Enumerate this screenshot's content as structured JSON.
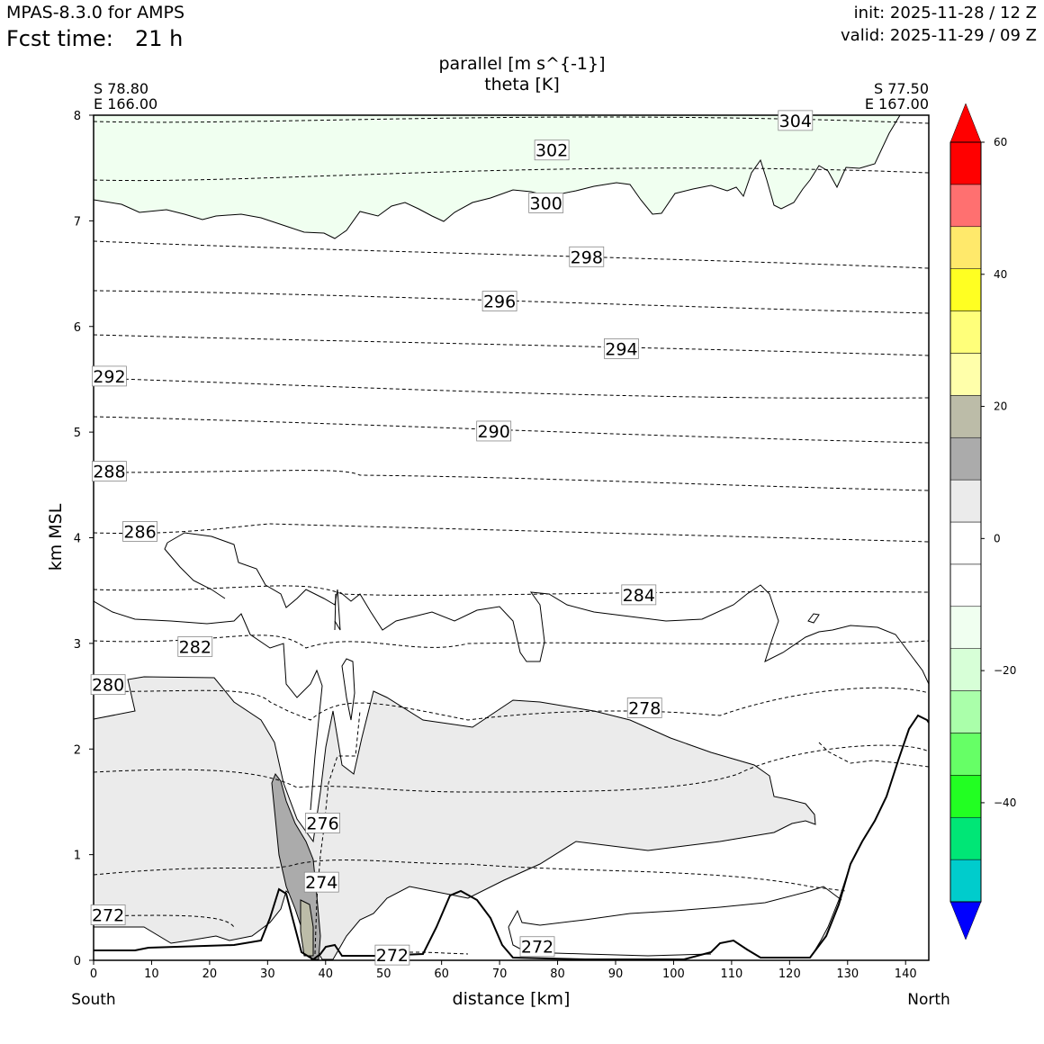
{
  "header": {
    "model": "MPAS-8.3.0 for AMPS",
    "fcst_label": "Fcst time:",
    "fcst_value": "21 h",
    "init": "init: 2025-11-28 / 12 Z",
    "valid": "valid: 2025-11-29 / 09 Z"
  },
  "chart_data": {
    "type": "cross-section contour",
    "title_line1": "parallel [m s^{-1}]",
    "title_line2": "theta [K]",
    "xlabel": "distance [km]",
    "ylabel": "km MSL",
    "xlim": [
      0,
      144
    ],
    "ylim": [
      0,
      8
    ],
    "xticks": [
      "0",
      "10",
      "20",
      "30",
      "40",
      "50",
      "60",
      "70",
      "80",
      "90",
      "100",
      "110",
      "120",
      "130",
      "140"
    ],
    "yticks": [
      "0",
      "1",
      "2",
      "3",
      "4",
      "5",
      "6",
      "7",
      "8"
    ],
    "left_end": {
      "lat": "S 78.80",
      "lon": "E 166.00",
      "label": "South"
    },
    "right_end": {
      "lat": "S 77.50",
      "lon": "E 167.00",
      "label": "North"
    },
    "colorbar": {
      "min": -55,
      "max": 60,
      "step": 5,
      "tick_labels": [
        {
          "value": 60,
          "label": "60"
        },
        {
          "value": 40,
          "label": "40"
        },
        {
          "value": 20,
          "label": "20"
        },
        {
          "value": 0,
          "label": "0"
        },
        {
          "value": -20,
          "label": "−20"
        },
        {
          "value": -40,
          "label": "−40"
        }
      ],
      "colors_low_to_high": [
        "#0000ff",
        "#00cccc",
        "#00e676",
        "#22ff22",
        "#66ff66",
        "#aaffaa",
        "#d7ffd7",
        "#f0fff0",
        "#ffffff",
        "#ffffff",
        "#ebebeb",
        "#ababab",
        "#bcbca8",
        "#ffffaa",
        "#ffff7a",
        "#ffff22",
        "#ffe96b",
        "#ff7070",
        "#ff0000"
      ]
    },
    "theta_labels": [
      {
        "text": "304",
        "x": 121,
        "y": 7.95
      },
      {
        "text": "302",
        "x": 79,
        "y": 7.67
      },
      {
        "text": "300",
        "x": 78,
        "y": 7.17
      },
      {
        "text": "298",
        "x": 85,
        "y": 6.66
      },
      {
        "text": "296",
        "x": 70,
        "y": 6.24
      },
      {
        "text": "294",
        "x": 91,
        "y": 5.79
      },
      {
        "text": "292",
        "x": 2.7,
        "y": 5.53
      },
      {
        "text": "290",
        "x": 69,
        "y": 5.01
      },
      {
        "text": "288",
        "x": 2.7,
        "y": 4.63
      },
      {
        "text": "286",
        "x": 8,
        "y": 4.06
      },
      {
        "text": "284",
        "x": 94,
        "y": 3.46
      },
      {
        "text": "282",
        "x": 17.5,
        "y": 2.97
      },
      {
        "text": "280",
        "x": 2.5,
        "y": 2.61
      },
      {
        "text": "278",
        "x": 95,
        "y": 2.39
      },
      {
        "text": "276",
        "x": 39.5,
        "y": 1.3
      },
      {
        "text": "274",
        "x": 39.3,
        "y": 0.74
      },
      {
        "text": "272",
        "x": 2.5,
        "y": 0.43
      },
      {
        "text": "272",
        "x": 51.5,
        "y": 0.05
      },
      {
        "text": "272",
        "x": 76.5,
        "y": 0.13
      }
    ]
  }
}
